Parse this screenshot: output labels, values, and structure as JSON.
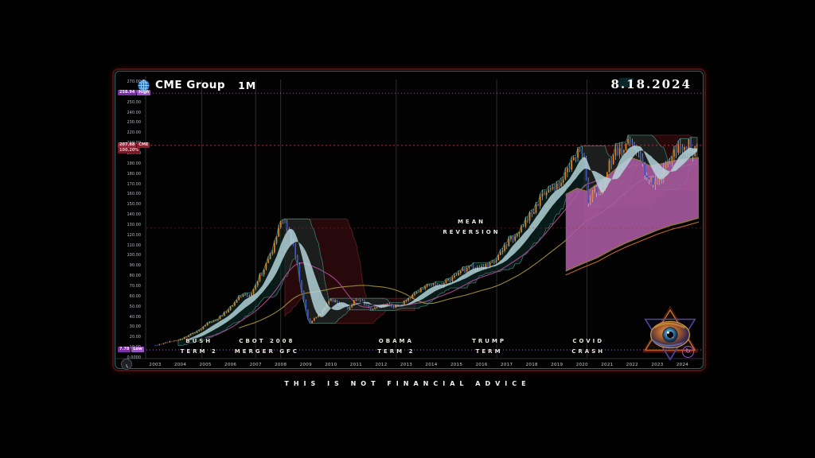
{
  "header": {
    "brand": "CME Group",
    "timeframe": "1M",
    "date": "8.18.2024"
  },
  "footer": {
    "disclaimer": "THIS IS NOT FINANCIAL ADVICE"
  },
  "price_scale": {
    "ticks": [
      "270.00",
      "260.00",
      "250.00",
      "240.00",
      "230.00",
      "220.00",
      "210.00",
      "200.00",
      "190.00",
      "180.00",
      "170.00",
      "160.00",
      "150.00",
      "140.00",
      "130.00",
      "120.00",
      "110.00",
      "100.00",
      "90.00",
      "80.00",
      "70.00",
      "60.00",
      "50.00",
      "40.00",
      "30.00",
      "20.00",
      "10.00",
      "0.0000"
    ],
    "high_label": {
      "price": "258.94",
      "tag": "High"
    },
    "current_label": {
      "price": "207.88",
      "pct": "100.20%",
      "tag": "CME"
    },
    "low_label": {
      "price": "7.78",
      "tag": "Low"
    }
  },
  "time_scale": {
    "years": [
      "2003",
      "2004",
      "2005",
      "2006",
      "2007",
      "2008",
      "2009",
      "2010",
      "2011",
      "2012",
      "2013",
      "2014",
      "2015",
      "2016",
      "2017",
      "2018",
      "2019",
      "2020",
      "2021",
      "2022",
      "2023",
      "2024"
    ]
  },
  "annotations": [
    {
      "id": "bush",
      "lines": [
        "BUSH",
        "TERM 2"
      ],
      "year": 2004.75,
      "row": "bottom"
    },
    {
      "id": "cbot",
      "lines": [
        "CBOT 2008",
        "MERGER GFC"
      ],
      "year": 2007.45,
      "row": "bottom"
    },
    {
      "id": "obama",
      "lines": [
        "OBAMA",
        "TERM 2"
      ],
      "year": 2012.6,
      "row": "bottom"
    },
    {
      "id": "trump",
      "lines": [
        "TRUMP",
        "TERM"
      ],
      "year": 2016.3,
      "row": "bottom"
    },
    {
      "id": "covid",
      "lines": [
        "COVID",
        "CRASH"
      ],
      "year": 2020.25,
      "row": "bottom"
    },
    {
      "id": "mean-reversion",
      "lines": [
        "MEAN",
        "REVERSION"
      ],
      "year": 2015.6,
      "value": 134,
      "row": "float"
    }
  ],
  "icons": {
    "spiral_glyph": "↻"
  },
  "chart_data": {
    "type": "candlestick",
    "symbol": "CME",
    "timeframe": "1M",
    "title": "CME Group 1M",
    "x_range": [
      2003,
      2024.65
    ],
    "y_range": [
      0,
      270
    ],
    "y_tick_step": 10,
    "grid": "sparse-vertical",
    "key_levels": {
      "all_time_high": 258.94,
      "last_price": 207.88,
      "pct_change": "100.20%",
      "all_time_low": 7.78,
      "mean_reversion_line": 127
    },
    "gridline_years": [
      2004.85,
      2007.0,
      2008.0,
      2012.6,
      2016.6,
      2020.2
    ],
    "close_anchors": [
      [
        2003.0,
        12
      ],
      [
        2003.3,
        14
      ],
      [
        2003.6,
        16
      ],
      [
        2003.9,
        17
      ],
      [
        2004.2,
        20
      ],
      [
        2004.5,
        24
      ],
      [
        2004.8,
        27
      ],
      [
        2005.0,
        32
      ],
      [
        2005.3,
        36
      ],
      [
        2005.6,
        40
      ],
      [
        2005.9,
        47
      ],
      [
        2006.2,
        56
      ],
      [
        2006.5,
        62
      ],
      [
        2006.8,
        60
      ],
      [
        2007.0,
        72
      ],
      [
        2007.3,
        86
      ],
      [
        2007.6,
        100
      ],
      [
        2007.9,
        128
      ],
      [
        2008.05,
        135
      ],
      [
        2008.2,
        128
      ],
      [
        2008.4,
        118
      ],
      [
        2008.6,
        100
      ],
      [
        2008.8,
        70
      ],
      [
        2009.0,
        45
      ],
      [
        2009.15,
        33
      ],
      [
        2009.4,
        40
      ],
      [
        2009.7,
        47
      ],
      [
        2010.0,
        57
      ],
      [
        2010.4,
        52
      ],
      [
        2010.7,
        48
      ],
      [
        2011.0,
        58
      ],
      [
        2011.3,
        54
      ],
      [
        2011.6,
        47
      ],
      [
        2011.9,
        49
      ],
      [
        2012.2,
        53
      ],
      [
        2012.5,
        50
      ],
      [
        2012.8,
        53
      ],
      [
        2013.1,
        58
      ],
      [
        2013.5,
        66
      ],
      [
        2013.9,
        72
      ],
      [
        2014.3,
        70
      ],
      [
        2014.7,
        76
      ],
      [
        2015.1,
        84
      ],
      [
        2015.5,
        89
      ],
      [
        2015.9,
        86
      ],
      [
        2016.3,
        92
      ],
      [
        2016.7,
        100
      ],
      [
        2017.1,
        115
      ],
      [
        2017.5,
        122
      ],
      [
        2017.9,
        138
      ],
      [
        2018.3,
        155
      ],
      [
        2018.6,
        160
      ],
      [
        2018.9,
        168
      ],
      [
        2019.2,
        175
      ],
      [
        2019.5,
        188
      ],
      [
        2019.85,
        205
      ],
      [
        2020.1,
        190
      ],
      [
        2020.25,
        152
      ],
      [
        2020.5,
        165
      ],
      [
        2020.8,
        162
      ],
      [
        2021.0,
        182
      ],
      [
        2021.3,
        205
      ],
      [
        2021.6,
        198
      ],
      [
        2021.9,
        215
      ],
      [
        2022.1,
        205
      ],
      [
        2022.4,
        188
      ],
      [
        2022.7,
        172
      ],
      [
        2023.0,
        175
      ],
      [
        2023.3,
        183
      ],
      [
        2023.6,
        196
      ],
      [
        2023.9,
        207
      ],
      [
        2024.1,
        203
      ],
      [
        2024.3,
        212
      ],
      [
        2024.45,
        198
      ],
      [
        2024.58,
        207.88
      ]
    ],
    "drawdown_regions": [
      [
        2008.15,
        2013.3
      ],
      [
        2020.08,
        2024.62
      ]
    ],
    "projection_band": {
      "top": [
        [
          2019.35,
          160
        ],
        [
          2019.8,
          166
        ],
        [
          2020.2,
          163
        ],
        [
          2020.6,
          170
        ],
        [
          2021.0,
          178
        ],
        [
          2021.5,
          188
        ],
        [
          2021.95,
          196
        ],
        [
          2022.3,
          193
        ],
        [
          2022.7,
          188
        ],
        [
          2023.2,
          190
        ],
        [
          2023.7,
          193
        ],
        [
          2024.2,
          195
        ],
        [
          2024.65,
          196
        ]
      ],
      "bottom": [
        [
          2019.35,
          85
        ],
        [
          2020.0,
          92
        ],
        [
          2020.6,
          98
        ],
        [
          2021.2,
          106
        ],
        [
          2021.8,
          113
        ],
        [
          2022.4,
          119
        ],
        [
          2023.0,
          125
        ],
        [
          2023.6,
          130
        ],
        [
          2024.1,
          133
        ],
        [
          2024.65,
          137
        ]
      ]
    },
    "overlays": [
      "donchian-12m-teal",
      "drawdown-channel-maroon",
      "ma-ribbon-8-16",
      "sma-30-magenta",
      "sma-62-olive",
      "projection-band-magenta"
    ]
  },
  "colors": {
    "up": "#e2831f",
    "down": "#3d55c4",
    "wick": "#c9ced6",
    "ribbon": "#b8d8de",
    "teal_fill": "rgba(14,52,48,0.5)",
    "teal_stroke": "rgba(62,142,126,0.85)",
    "maroon_fill": "rgba(56,13,15,0.72)",
    "maroon_stroke": "#5a2026",
    "band_fill": "rgba(169,90,160,0.9)",
    "band_khaki": "#8f7b2e",
    "band_orange": "#c4661d",
    "ma_magenta": "#a4478f",
    "ma_olive": "#9d8733",
    "current_line": "rgba(205,60,75,0.95)",
    "mean_line": "rgba(150,45,55,0.55)",
    "extreme_line": "rgba(186,123,230,0.85)",
    "grid": "#383838",
    "axis_line": "#2b3137",
    "globe": "#2b78c8",
    "globe_grid": "#9fd0f0"
  }
}
